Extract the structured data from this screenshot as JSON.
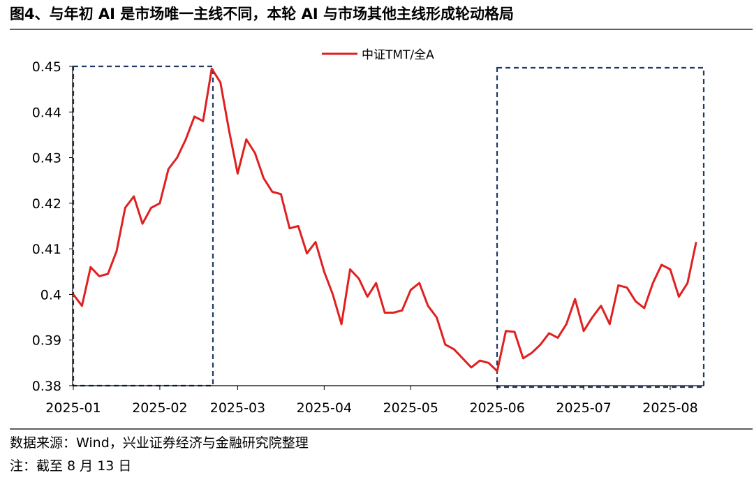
{
  "chart_data": {
    "type": "line",
    "title": "图4、与年初 AI 是市场唯一主线不同，本轮 AI 与市场其他主线形成轮动格局",
    "categories": [
      "2025-01",
      null,
      null,
      null,
      null,
      null,
      null,
      null,
      null,
      null,
      "2025-02",
      null,
      null,
      null,
      null,
      null,
      null,
      null,
      null,
      "2025-03",
      null,
      null,
      null,
      null,
      null,
      null,
      null,
      null,
      null,
      "2025-04",
      null,
      null,
      null,
      null,
      null,
      null,
      null,
      null,
      null,
      "2025-05",
      null,
      null,
      null,
      null,
      null,
      null,
      null,
      null,
      null,
      "2025-06",
      null,
      null,
      null,
      null,
      null,
      null,
      null,
      null,
      null,
      "2025-07",
      null,
      null,
      null,
      null,
      null,
      null,
      null,
      null,
      null,
      "2025-08",
      null,
      null,
      null
    ],
    "series": [
      {
        "name": "中证TMT/全A",
        "color": "#e02020",
        "values": [
          0.4,
          0.3975,
          0.406,
          0.404,
          0.4045,
          0.4095,
          0.419,
          0.4215,
          0.4155,
          0.419,
          0.42,
          0.4275,
          0.43,
          0.434,
          0.439,
          0.438,
          0.4495,
          0.4465,
          0.436,
          0.4265,
          0.434,
          0.431,
          0.4255,
          0.4225,
          0.422,
          0.4145,
          0.415,
          0.409,
          0.4115,
          0.405,
          0.4,
          0.3935,
          0.4055,
          0.4035,
          0.3995,
          0.4025,
          0.396,
          0.396,
          0.3965,
          0.401,
          0.4025,
          0.3975,
          0.395,
          0.389,
          0.388,
          0.386,
          0.384,
          0.3855,
          0.385,
          0.3832,
          0.392,
          0.3918,
          0.386,
          0.3872,
          0.389,
          0.3915,
          0.3905,
          0.3935,
          0.399,
          0.392,
          0.395,
          0.3975,
          0.3935,
          0.402,
          0.4015,
          0.3985,
          0.397,
          0.4025,
          0.4065,
          0.4055,
          0.3995,
          0.4025,
          0.4115
        ]
      }
    ],
    "ylim": [
      0.38,
      0.45
    ],
    "yticks": [
      0.38,
      0.39,
      0.4,
      0.41,
      0.42,
      0.43,
      0.44,
      0.45
    ],
    "legend": "top",
    "source": "数据来源：Wind，兴业证券经济与金融研究院整理",
    "note": "注：截至 8 月 13 日"
  }
}
